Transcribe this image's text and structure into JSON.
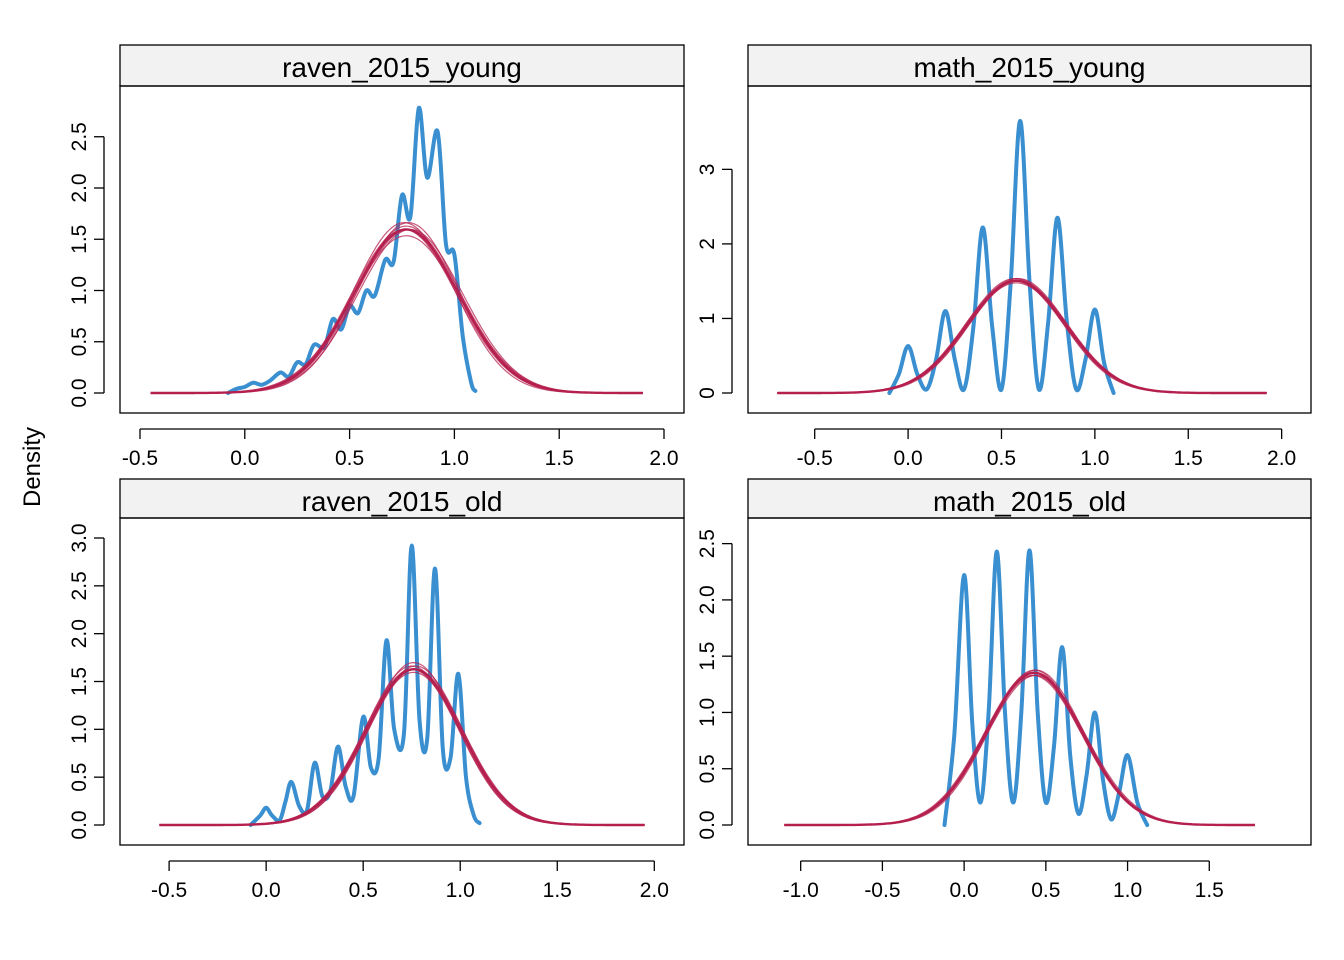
{
  "y_axis_label": "Density",
  "colors": {
    "observed": "#3a8fd0",
    "replicated": "#b5204f",
    "strip_fill": "#f2f2f2"
  },
  "chart_data": [
    {
      "type": "line",
      "title": "raven_2015_young",
      "xlim": [
        -0.5,
        2.0
      ],
      "ylim": [
        0,
        2.8
      ],
      "xticks": [
        -0.5,
        0.0,
        0.5,
        1.0,
        1.5,
        2.0
      ],
      "xtick_labels": [
        "-0.5",
        "0.0",
        "0.5",
        "1.0",
        "1.5",
        "2.0"
      ],
      "yticks": [
        0,
        0.5,
        1.0,
        1.5,
        2.0,
        2.5
      ],
      "ytick_labels": [
        "0.0",
        "0.5",
        "1.0",
        "1.5",
        "2.0",
        "2.5"
      ],
      "series": [
        {
          "kind": "observed",
          "x": [
            -0.08,
            -0.04,
            0.0,
            0.04,
            0.08,
            0.12,
            0.17,
            0.21,
            0.25,
            0.29,
            0.33,
            0.38,
            0.42,
            0.46,
            0.5,
            0.54,
            0.58,
            0.62,
            0.67,
            0.71,
            0.75,
            0.79,
            0.83,
            0.87,
            0.92,
            0.96,
            1.0,
            1.04,
            1.08,
            1.1
          ],
          "y": [
            0.0,
            0.04,
            0.06,
            0.1,
            0.08,
            0.12,
            0.2,
            0.16,
            0.3,
            0.28,
            0.47,
            0.45,
            0.72,
            0.62,
            0.85,
            0.78,
            1.0,
            0.95,
            1.3,
            1.28,
            1.93,
            1.72,
            2.78,
            2.1,
            2.55,
            1.45,
            1.35,
            0.55,
            0.1,
            0.02
          ]
        },
        {
          "kind": "replicated",
          "mean": 0.77,
          "sd": 0.25,
          "x_from": -0.45,
          "x_to": 1.9,
          "variants": [
            [
              0.77,
              0.25
            ],
            [
              0.76,
              0.24
            ],
            [
              0.78,
              0.25
            ],
            [
              0.77,
              0.26
            ],
            [
              0.76,
              0.25
            ],
            [
              0.78,
              0.24
            ],
            [
              0.77,
              0.245
            ],
            [
              0.79,
              0.25
            ]
          ]
        }
      ]
    },
    {
      "type": "line",
      "title": "math_2015_young",
      "xlim": [
        -0.75,
        2.05
      ],
      "ylim": [
        0,
        3.85
      ],
      "xticks": [
        -0.5,
        0.0,
        0.5,
        1.0,
        1.5,
        2.0
      ],
      "xtick_labels": [
        "-0.5",
        "0.0",
        "0.5",
        "1.0",
        "1.5",
        "2.0"
      ],
      "yticks": [
        0,
        1,
        2,
        3
      ],
      "ytick_labels": [
        "0",
        "1",
        "2",
        "3"
      ],
      "series": [
        {
          "kind": "observed",
          "x": [
            -0.1,
            -0.05,
            0.0,
            0.05,
            0.1,
            0.15,
            0.2,
            0.25,
            0.3,
            0.35,
            0.4,
            0.45,
            0.5,
            0.55,
            0.6,
            0.65,
            0.7,
            0.75,
            0.8,
            0.85,
            0.9,
            0.95,
            1.0,
            1.05,
            1.1
          ],
          "y": [
            0.0,
            0.25,
            0.63,
            0.25,
            0.05,
            0.45,
            1.1,
            0.45,
            0.05,
            0.9,
            2.22,
            0.9,
            0.05,
            1.5,
            3.65,
            1.5,
            0.05,
            0.95,
            2.35,
            0.95,
            0.05,
            0.45,
            1.12,
            0.4,
            0.0
          ]
        },
        {
          "kind": "replicated",
          "mean": 0.58,
          "sd": 0.265,
          "x_from": -0.7,
          "x_to": 1.92,
          "variants": [
            [
              0.58,
              0.265
            ],
            [
              0.57,
              0.26
            ],
            [
              0.59,
              0.265
            ],
            [
              0.58,
              0.27
            ],
            [
              0.57,
              0.265
            ],
            [
              0.59,
              0.26
            ],
            [
              0.58,
              0.26
            ]
          ]
        }
      ]
    },
    {
      "type": "line",
      "title": "raven_2015_old",
      "xlim": [
        -0.65,
        2.05
      ],
      "ylim": [
        0,
        3.0
      ],
      "xticks": [
        -0.5,
        0.0,
        0.5,
        1.0,
        1.5,
        2.0
      ],
      "xtick_labels": [
        "-0.5",
        "0.0",
        "0.5",
        "1.0",
        "1.5",
        "2.0"
      ],
      "yticks": [
        0,
        0.5,
        1.0,
        1.5,
        2.0,
        2.5,
        3.0
      ],
      "ytick_labels": [
        "0.0",
        "0.5",
        "1.0",
        "1.5",
        "2.0",
        "2.5",
        "3.0"
      ],
      "series": [
        {
          "kind": "observed",
          "x": [
            -0.08,
            -0.03,
            0.0,
            0.03,
            0.07,
            0.1,
            0.13,
            0.17,
            0.21,
            0.25,
            0.29,
            0.33,
            0.37,
            0.41,
            0.45,
            0.5,
            0.54,
            0.58,
            0.62,
            0.66,
            0.71,
            0.75,
            0.79,
            0.83,
            0.87,
            0.91,
            0.95,
            0.99,
            1.03,
            1.07,
            1.1
          ],
          "y": [
            0.0,
            0.1,
            0.18,
            0.1,
            0.05,
            0.25,
            0.45,
            0.2,
            0.15,
            0.65,
            0.3,
            0.35,
            0.82,
            0.4,
            0.3,
            1.13,
            0.6,
            0.7,
            1.93,
            1.0,
            0.95,
            2.92,
            1.1,
            0.9,
            2.68,
            0.8,
            0.7,
            1.58,
            0.5,
            0.1,
            0.02
          ]
        },
        {
          "kind": "replicated",
          "mean": 0.76,
          "sd": 0.245,
          "x_from": -0.55,
          "x_to": 1.95,
          "variants": [
            [
              0.76,
              0.245
            ],
            [
              0.75,
              0.24
            ],
            [
              0.77,
              0.245
            ],
            [
              0.76,
              0.25
            ],
            [
              0.75,
              0.245
            ],
            [
              0.77,
              0.24
            ],
            [
              0.76,
              0.235
            ]
          ]
        }
      ]
    },
    {
      "type": "line",
      "title": "math_2015_old",
      "xlim": [
        -1.2,
        2.0
      ],
      "ylim": [
        0,
        2.55
      ],
      "xticks": [
        -1.0,
        -0.5,
        0.0,
        0.5,
        1.0,
        1.5
      ],
      "xtick_labels": [
        "-1.0",
        "-0.5",
        "0.0",
        "0.5",
        "1.0",
        "1.5"
      ],
      "yticks": [
        0,
        0.5,
        1.0,
        1.5,
        2.0,
        2.5
      ],
      "ytick_labels": [
        "0.0",
        "0.5",
        "1.0",
        "1.5",
        "2.0",
        "2.5"
      ],
      "series": [
        {
          "kind": "observed",
          "x": [
            -0.12,
            -0.06,
            0.0,
            0.05,
            0.1,
            0.15,
            0.2,
            0.25,
            0.3,
            0.35,
            0.4,
            0.45,
            0.5,
            0.55,
            0.6,
            0.65,
            0.7,
            0.75,
            0.8,
            0.85,
            0.9,
            0.95,
            1.0,
            1.06,
            1.12
          ],
          "y": [
            0.0,
            0.8,
            2.22,
            0.9,
            0.2,
            1.0,
            2.43,
            1.0,
            0.2,
            1.0,
            2.44,
            1.0,
            0.2,
            0.7,
            1.58,
            0.6,
            0.1,
            0.45,
            1.0,
            0.4,
            0.05,
            0.3,
            0.62,
            0.2,
            0.0
          ]
        },
        {
          "kind": "replicated",
          "mean": 0.43,
          "sd": 0.295,
          "x_from": -1.1,
          "x_to": 1.78,
          "variants": [
            [
              0.43,
              0.295
            ],
            [
              0.42,
              0.3
            ],
            [
              0.44,
              0.29
            ],
            [
              0.43,
              0.3
            ],
            [
              0.42,
              0.295
            ],
            [
              0.44,
              0.3
            ],
            [
              0.43,
              0.29
            ]
          ]
        }
      ]
    }
  ]
}
